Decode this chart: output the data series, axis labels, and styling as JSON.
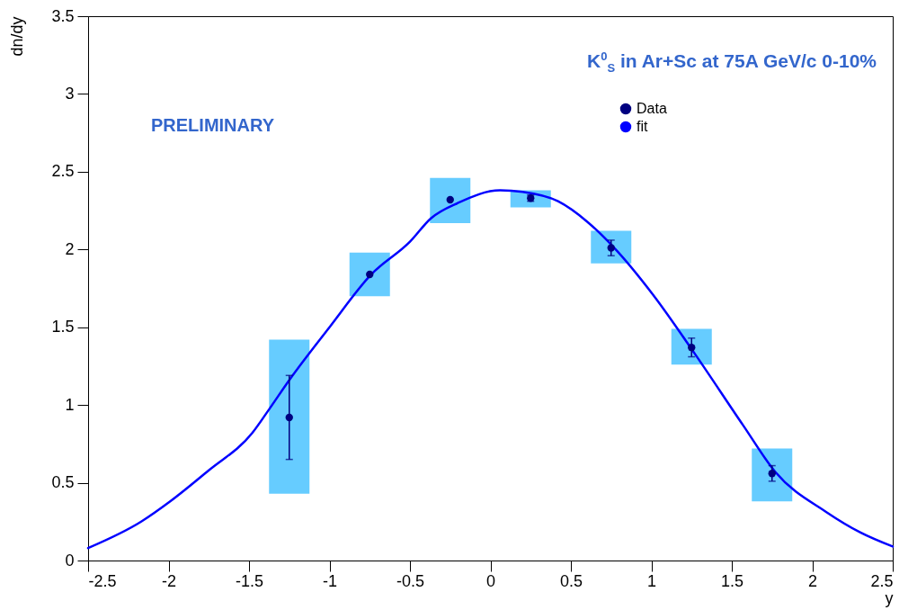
{
  "chart_data": {
    "type": "scatter",
    "title": "K$^{0}$$_{S}$ in Ar+Sc at 75A GeV/c 0-10%",
    "xlabel": "y",
    "ylabel": "dn/dy",
    "annotations": [
      "PRELIMINARY"
    ],
    "xlim": [
      -2.5,
      2.5
    ],
    "xticks": [
      -2.5,
      -2,
      -1.5,
      -1,
      -0.5,
      0,
      0.5,
      1,
      1.5,
      2,
      2.5
    ],
    "ylim": [
      0,
      3.5
    ],
    "yticks": [
      0,
      0.5,
      1,
      1.5,
      2,
      2.5,
      3,
      3.5
    ],
    "legend": "top right",
    "series": [
      {
        "type": "bar",
        "color": "#66ccff",
        "x": [
          -1.25,
          -0.75,
          -0.25,
          0.25,
          0.75,
          1.25,
          1.75
        ],
        "base": [
          0.43,
          1.7,
          2.17,
          2.27,
          1.91,
          1.26,
          0.38
        ],
        "values": [
          0.99,
          0.28,
          0.29,
          0.11,
          0.21,
          0.23,
          0.34
        ]
      },
      {
        "name": "Data",
        "color": "#000080",
        "marker": "circle",
        "x": [
          -1.25,
          -0.75,
          -0.25,
          0.25,
          0.75,
          1.25,
          1.75
        ],
        "values": [
          0.92,
          1.84,
          2.32,
          2.33,
          2.01,
          1.37,
          0.56
        ],
        "errors": [
          0.27,
          null,
          null,
          0.02,
          0.05,
          0.06,
          0.05
        ]
      },
      {
        "type": "line",
        "name": "fit",
        "color": "#0000ff",
        "x": [
          -2.5,
          -2.17,
          -1.99,
          -1.75,
          -1.48,
          -1.37,
          -1.25,
          -1.0,
          -0.74,
          -0.5,
          -0.37,
          -0.2,
          0.06,
          0.2,
          0.42,
          0.6,
          0.77,
          1.01,
          1.27,
          1.57,
          1.77,
          2.09,
          2.3,
          2.5
        ],
        "values": [
          0.08,
          0.25,
          0.38,
          0.58,
          0.82,
          0.98,
          1.16,
          1.5,
          1.84,
          2.05,
          2.2,
          2.3,
          2.38,
          2.37,
          2.31,
          2.18,
          2.01,
          1.71,
          1.33,
          0.87,
          0.57,
          0.31,
          0.18,
          0.09
        ]
      }
    ]
  }
}
